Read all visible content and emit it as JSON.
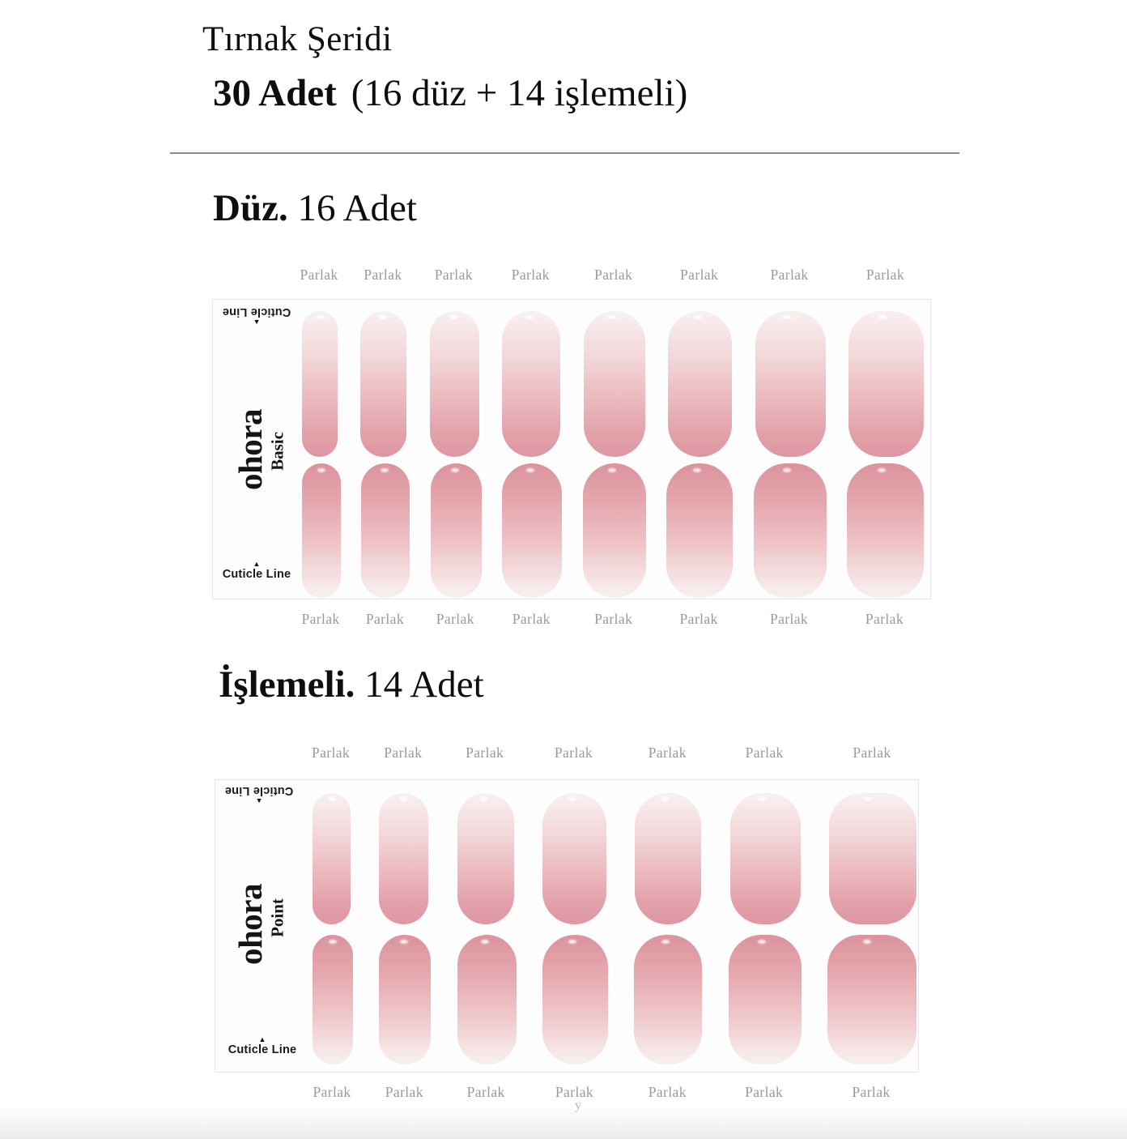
{
  "header": {
    "title": "Tırnak Şeridi",
    "subtitle_bold": "30 Adet",
    "subtitle_rest": "(16 düz + 14 işlemeli)"
  },
  "colors": {
    "nail_tip_pink": "#dd97a2",
    "nail_base_pink": "#f8f1f1",
    "label_gray": "#999999",
    "divider_gray": "#8c8c8c",
    "sheet_border": "#e6e4e4",
    "text_black": "#0e0e0e"
  },
  "sheet1": {
    "heading": {
      "bold": "Düz.",
      "rest": "16 Adet"
    },
    "count": 16,
    "gloss_label": "Parlak",
    "logo": "ohora",
    "series": "Basic",
    "cuticle_label": "Cuticle Line",
    "row1_widths": [
      44,
      57,
      61,
      72,
      76,
      79,
      87,
      93
    ],
    "row2_widths": [
      48,
      60,
      63,
      74,
      78,
      82,
      90,
      95
    ]
  },
  "sheet2": {
    "heading": {
      "bold": "İşlemeli.",
      "rest": "14 Adet"
    },
    "count": 14,
    "gloss_label": "Parlak",
    "logo": "ohora",
    "series": "Point",
    "cuticle_label": "Cuticle Line",
    "row1_widths": [
      47,
      61,
      70,
      79,
      82,
      87,
      108
    ],
    "row2_widths": [
      50,
      64,
      73,
      81,
      84,
      90,
      110
    ]
  },
  "artifact": {
    "stray_mark": "y"
  }
}
